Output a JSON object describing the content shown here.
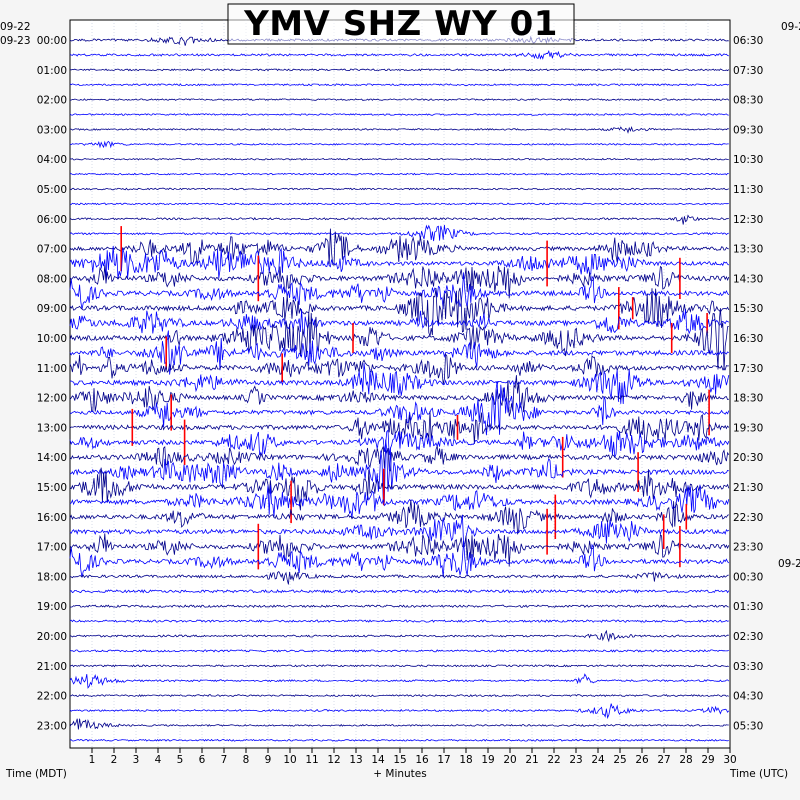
{
  "chart_data": {
    "type": "helicorder",
    "title": "YMV SHZ WY 01",
    "left_date_top": "09-22",
    "left_date_second": "09-23",
    "right_date_top": "09-2",
    "right_date_mid": "09-2",
    "left_hours": [
      "00:00",
      "01:00",
      "02:00",
      "03:00",
      "04:00",
      "05:00",
      "06:00",
      "07:00",
      "08:00",
      "09:00",
      "10:00",
      "11:00",
      "12:00",
      "13:00",
      "14:00",
      "15:00",
      "16:00",
      "17:00",
      "18:00",
      "19:00",
      "20:00",
      "21:00",
      "22:00",
      "23:00"
    ],
    "right_hours": [
      "06:30",
      "07:30",
      "08:30",
      "09:30",
      "10:30",
      "11:30",
      "12:30",
      "13:30",
      "14:30",
      "15:30",
      "16:30",
      "17:30",
      "18:30",
      "19:30",
      "20:30",
      "21:30",
      "22:30",
      "23:30",
      "00:30",
      "01:30",
      "02:30",
      "03:30",
      "04:30",
      "05:30"
    ],
    "x_ticks": [
      "1",
      "2",
      "3",
      "4",
      "5",
      "6",
      "7",
      "8",
      "9",
      "10",
      "11",
      "12",
      "13",
      "14",
      "15",
      "16",
      "17",
      "18",
      "19",
      "20",
      "21",
      "22",
      "23",
      "24",
      "25",
      "26",
      "27",
      "28",
      "29",
      "30"
    ],
    "xlim": [
      0,
      30
    ],
    "xlabel": "+ Minutes",
    "left_axis_label": "Time (MDT)",
    "right_axis_label": "Time (UTC)",
    "traces_per_hour": 2,
    "trace_colors": [
      "#00008b",
      "#0000ff"
    ],
    "clip_color": "#ff0000",
    "hour_activity": [
      2,
      1,
      0.7,
      0.6,
      0.6,
      0.7,
      1.5,
      5,
      7,
      7,
      7,
      7,
      6,
      6.5,
      7,
      7,
      6.5,
      6.5,
      3,
      2,
      1.5,
      1.2,
      1.2,
      0.8
    ]
  }
}
